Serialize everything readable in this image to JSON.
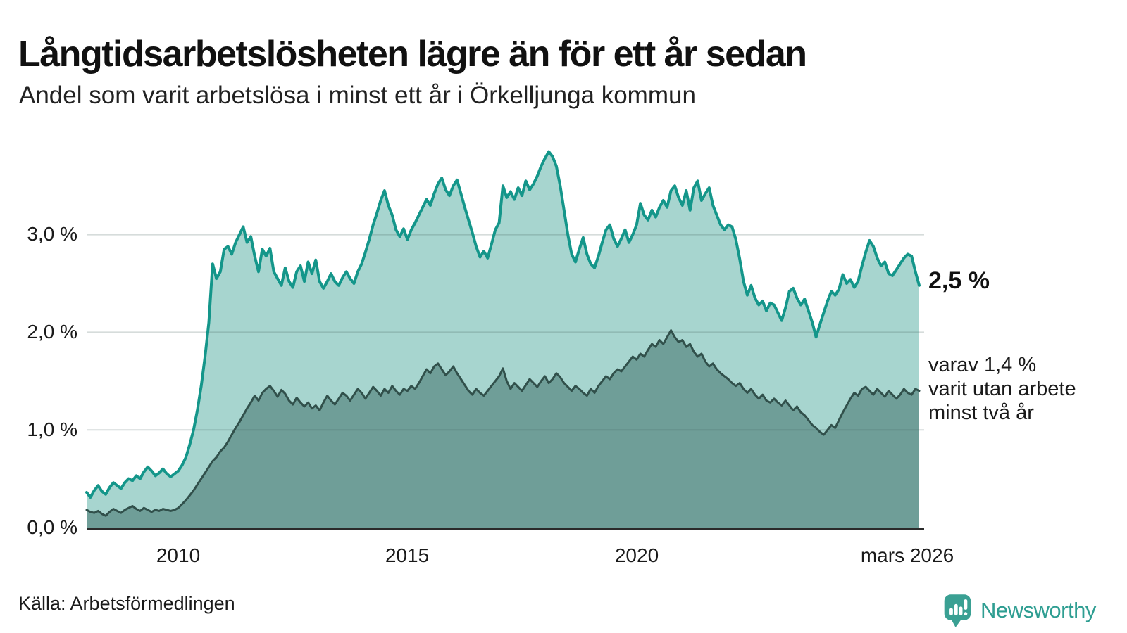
{
  "header": {
    "title": "Långtidsarbetslösheten lägre än för ett år sedan",
    "subtitle": "Andel som varit arbetslösa i minst ett år i Örkelljunga kommun"
  },
  "chart_data": {
    "type": "area",
    "title": "Långtidsarbetslösheten lägre än för ett år sedan",
    "x_start": "2008-01",
    "x_end": "2026-03",
    "x_tick_labels": [
      "2010",
      "2015",
      "2020",
      "mars 2026"
    ],
    "y_tick_labels": [
      "0,0 %",
      "1,0 %",
      "2,0 %",
      "3,0 %"
    ],
    "ylim": [
      0,
      3.95
    ],
    "grid": "horizontal",
    "unit": "%",
    "series": [
      {
        "name": "Andel arbetslösa minst ett år",
        "color": "#14968a",
        "fill": "#a7d5cf",
        "latest_value": 2.5,
        "values": [
          0.36,
          0.31,
          0.38,
          0.43,
          0.37,
          0.34,
          0.41,
          0.46,
          0.43,
          0.4,
          0.46,
          0.5,
          0.48,
          0.53,
          0.5,
          0.57,
          0.62,
          0.58,
          0.53,
          0.56,
          0.6,
          0.55,
          0.52,
          0.55,
          0.58,
          0.64,
          0.72,
          0.85,
          1.0,
          1.2,
          1.45,
          1.75,
          2.1,
          2.7,
          2.55,
          2.62,
          2.85,
          2.88,
          2.8,
          2.92,
          3.0,
          3.08,
          2.92,
          2.98,
          2.78,
          2.62,
          2.85,
          2.78,
          2.86,
          2.62,
          2.55,
          2.48,
          2.66,
          2.52,
          2.46,
          2.62,
          2.68,
          2.52,
          2.72,
          2.6,
          2.74,
          2.52,
          2.45,
          2.52,
          2.6,
          2.52,
          2.48,
          2.56,
          2.62,
          2.55,
          2.5,
          2.62,
          2.7,
          2.82,
          2.95,
          3.1,
          3.22,
          3.35,
          3.45,
          3.3,
          3.2,
          3.05,
          2.98,
          3.06,
          2.95,
          3.05,
          3.12,
          3.2,
          3.28,
          3.36,
          3.3,
          3.42,
          3.52,
          3.58,
          3.46,
          3.4,
          3.5,
          3.56,
          3.42,
          3.28,
          3.15,
          3.02,
          2.88,
          2.77,
          2.83,
          2.76,
          2.9,
          3.05,
          3.12,
          3.5,
          3.38,
          3.44,
          3.36,
          3.48,
          3.4,
          3.55,
          3.46,
          3.52,
          3.6,
          3.7,
          3.78,
          3.85,
          3.8,
          3.7,
          3.5,
          3.25,
          3.0,
          2.8,
          2.72,
          2.85,
          2.97,
          2.8,
          2.7,
          2.66,
          2.78,
          2.92,
          3.05,
          3.1,
          2.96,
          2.88,
          2.96,
          3.05,
          2.92,
          3.0,
          3.1,
          3.32,
          3.2,
          3.15,
          3.25,
          3.18,
          3.28,
          3.35,
          3.28,
          3.45,
          3.5,
          3.38,
          3.3,
          3.45,
          3.25,
          3.48,
          3.55,
          3.35,
          3.42,
          3.48,
          3.3,
          3.2,
          3.1,
          3.05,
          3.1,
          3.08,
          2.95,
          2.75,
          2.52,
          2.38,
          2.48,
          2.35,
          2.28,
          2.32,
          2.22,
          2.3,
          2.28,
          2.2,
          2.12,
          2.25,
          2.42,
          2.45,
          2.35,
          2.28,
          2.34,
          2.22,
          2.1,
          1.95,
          2.08,
          2.2,
          2.32,
          2.42,
          2.38,
          2.44,
          2.59,
          2.5,
          2.54,
          2.46,
          2.52,
          2.68,
          2.82,
          2.94,
          2.88,
          2.76,
          2.68,
          2.72,
          2.6,
          2.58,
          2.64,
          2.7,
          2.76,
          2.8,
          2.78,
          2.62,
          2.48
        ]
      },
      {
        "name": "varav utan arbete minst två år",
        "color": "#31504b",
        "fill": "#6f9e98",
        "latest_value": 1.4,
        "values": [
          0.18,
          0.16,
          0.15,
          0.17,
          0.14,
          0.12,
          0.16,
          0.19,
          0.17,
          0.15,
          0.18,
          0.2,
          0.22,
          0.19,
          0.17,
          0.2,
          0.18,
          0.16,
          0.18,
          0.17,
          0.19,
          0.18,
          0.17,
          0.18,
          0.2,
          0.24,
          0.28,
          0.33,
          0.38,
          0.44,
          0.5,
          0.56,
          0.62,
          0.68,
          0.72,
          0.78,
          0.82,
          0.88,
          0.95,
          1.02,
          1.08,
          1.15,
          1.22,
          1.28,
          1.35,
          1.3,
          1.38,
          1.42,
          1.45,
          1.4,
          1.34,
          1.41,
          1.37,
          1.3,
          1.26,
          1.33,
          1.28,
          1.24,
          1.28,
          1.22,
          1.25,
          1.2,
          1.28,
          1.35,
          1.3,
          1.26,
          1.32,
          1.38,
          1.35,
          1.3,
          1.36,
          1.42,
          1.38,
          1.32,
          1.38,
          1.44,
          1.4,
          1.35,
          1.42,
          1.38,
          1.45,
          1.4,
          1.36,
          1.42,
          1.4,
          1.45,
          1.42,
          1.48,
          1.55,
          1.62,
          1.58,
          1.65,
          1.68,
          1.62,
          1.56,
          1.6,
          1.65,
          1.58,
          1.52,
          1.46,
          1.4,
          1.36,
          1.42,
          1.38,
          1.35,
          1.4,
          1.45,
          1.5,
          1.55,
          1.63,
          1.5,
          1.42,
          1.48,
          1.44,
          1.4,
          1.46,
          1.52,
          1.48,
          1.44,
          1.5,
          1.55,
          1.48,
          1.52,
          1.58,
          1.54,
          1.48,
          1.44,
          1.4,
          1.45,
          1.42,
          1.38,
          1.35,
          1.42,
          1.38,
          1.45,
          1.5,
          1.55,
          1.52,
          1.58,
          1.62,
          1.6,
          1.65,
          1.7,
          1.75,
          1.72,
          1.78,
          1.75,
          1.82,
          1.88,
          1.85,
          1.92,
          1.88,
          1.95,
          2.02,
          1.95,
          1.9,
          1.92,
          1.85,
          1.88,
          1.8,
          1.75,
          1.78,
          1.7,
          1.65,
          1.68,
          1.62,
          1.58,
          1.55,
          1.52,
          1.48,
          1.45,
          1.48,
          1.42,
          1.38,
          1.42,
          1.36,
          1.32,
          1.36,
          1.3,
          1.28,
          1.32,
          1.28,
          1.25,
          1.3,
          1.25,
          1.2,
          1.24,
          1.18,
          1.15,
          1.1,
          1.05,
          1.02,
          0.98,
          0.95,
          1.0,
          1.05,
          1.02,
          1.1,
          1.18,
          1.25,
          1.32,
          1.38,
          1.35,
          1.42,
          1.44,
          1.4,
          1.36,
          1.42,
          1.38,
          1.34,
          1.4,
          1.36,
          1.32,
          1.36,
          1.42,
          1.38,
          1.36,
          1.42,
          1.4
        ]
      }
    ],
    "annotations": {
      "latest_total": "2,5 %",
      "two_year_lines": [
        "varav 1,4 %",
        "varit utan arbete",
        "minst två år"
      ]
    }
  },
  "footer": {
    "source": "Källa: Arbetsförmedlingen",
    "brand": "Newsworthy"
  },
  "colors": {
    "line_total": "#14968a",
    "fill_total": "#a7d5cf",
    "line_two_year": "#31504b",
    "fill_two_year": "#6f9e98",
    "axis": "#2b2b2b",
    "brand_teal": "#2f9e92"
  }
}
